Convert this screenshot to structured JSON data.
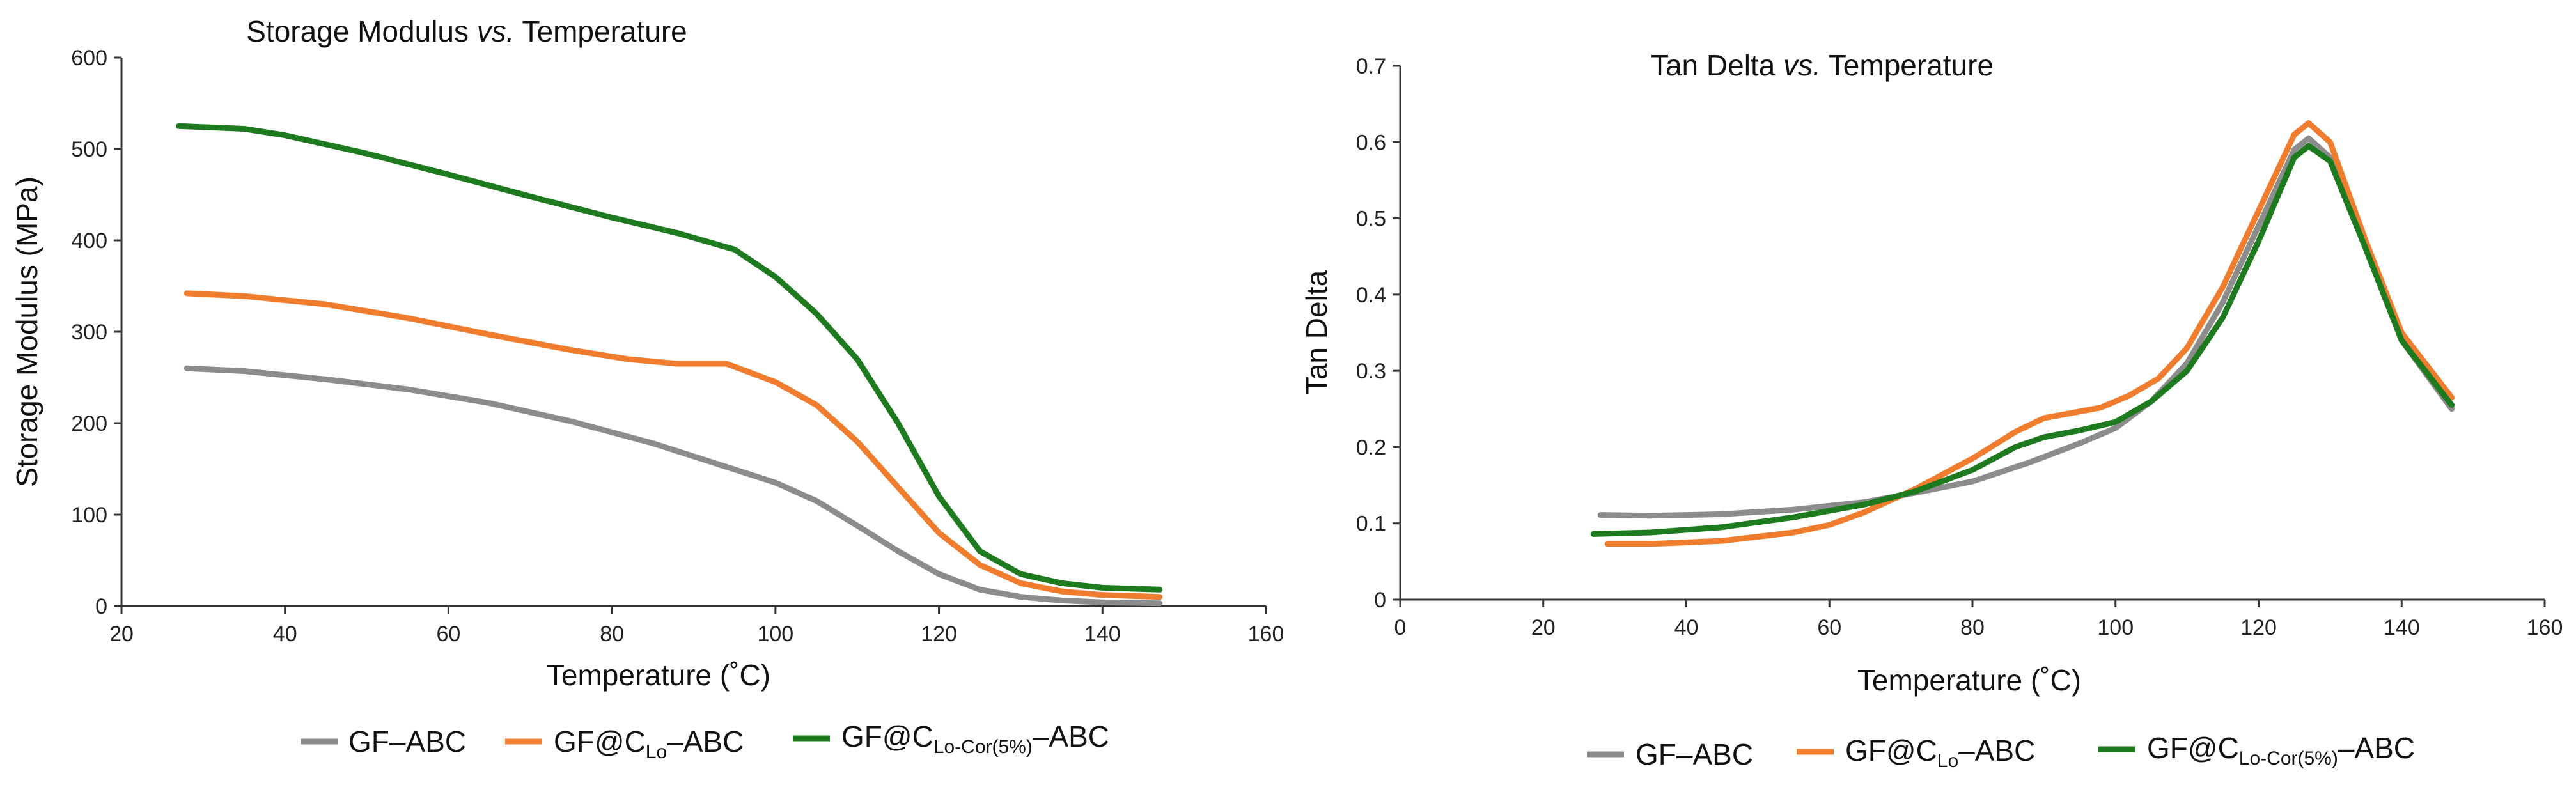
{
  "chart_data": [
    {
      "type": "line",
      "title": {
        "main": "Storage Modulus ",
        "italic": "vs.",
        "rest": " Temperature"
      },
      "xlabel": "Temperature (˚C)",
      "ylabel": "Storage Modulus (MPa)",
      "xlim": [
        20,
        160
      ],
      "ylim": [
        0,
        600
      ],
      "xticks": [
        "20",
        "40",
        "60",
        "80",
        "100",
        "120",
        "140",
        "160"
      ],
      "yticks": [
        "0",
        "100",
        "200",
        "300",
        "400",
        "500",
        "600"
      ],
      "series": [
        {
          "name": "GF–ABC",
          "label": {
            "base": "GF–ABC",
            "sub": "",
            "tail": ""
          },
          "color": "#8c8c8c",
          "x": [
            28,
            35,
            45,
            55,
            65,
            75,
            85,
            92,
            100,
            105,
            110,
            115,
            120,
            125,
            130,
            135,
            140,
            147
          ],
          "y": [
            260,
            257,
            248,
            237,
            222,
            202,
            178,
            158,
            135,
            115,
            88,
            60,
            35,
            18,
            10,
            6,
            4,
            3
          ]
        },
        {
          "name": "GF@CLo–ABC",
          "label": {
            "base": "GF@C",
            "sub": "Lo",
            "tail": "–ABC"
          },
          "color": "#f07d2e",
          "x": [
            28,
            35,
            45,
            55,
            65,
            75,
            82,
            88,
            94,
            100,
            105,
            110,
            115,
            120,
            125,
            130,
            135,
            140,
            147
          ],
          "y": [
            342,
            339,
            330,
            315,
            297,
            280,
            270,
            265,
            265,
            245,
            220,
            180,
            130,
            80,
            45,
            25,
            16,
            12,
            10
          ]
        },
        {
          "name": "GF@CLo-Cor(5%)–ABC",
          "label": {
            "base": "GF@C",
            "sub": "Lo-Cor(5%)",
            "tail": "–ABC"
          },
          "color": "#1e7a1e",
          "x": [
            27,
            35,
            40,
            50,
            60,
            70,
            80,
            88,
            95,
            100,
            105,
            110,
            115,
            120,
            125,
            130,
            135,
            140,
            147
          ],
          "y": [
            525,
            522,
            515,
            495,
            472,
            448,
            425,
            408,
            390,
            360,
            320,
            270,
            200,
            120,
            60,
            35,
            25,
            20,
            18
          ]
        }
      ],
      "legend": "bottom"
    },
    {
      "type": "line",
      "title": {
        "main": "Tan Delta ",
        "italic": "vs.",
        "rest": " Temperature"
      },
      "xlabel": "Temperature (˚C)",
      "ylabel": "Tan Delta",
      "xlim": [
        0,
        160
      ],
      "ylim": [
        0,
        0.7
      ],
      "xticks": [
        "0",
        "20",
        "40",
        "60",
        "80",
        "100",
        "120",
        "140",
        "160"
      ],
      "yticks": [
        "0",
        "0.1",
        "0.2",
        "0.3",
        "0.4",
        "0.5",
        "0.6",
        "0.7"
      ],
      "series": [
        {
          "name": "GF–ABC",
          "label": {
            "base": "GF–ABC",
            "sub": "",
            "tail": ""
          },
          "color": "#8c8c8c",
          "x": [
            28,
            35,
            45,
            55,
            65,
            72,
            80,
            88,
            95,
            100,
            105,
            110,
            115,
            120,
            125,
            127,
            130,
            135,
            140,
            147
          ],
          "y": [
            0.111,
            0.11,
            0.112,
            0.118,
            0.128,
            0.14,
            0.155,
            0.18,
            0.205,
            0.225,
            0.26,
            0.31,
            0.39,
            0.49,
            0.59,
            0.605,
            0.58,
            0.46,
            0.34,
            0.25
          ]
        },
        {
          "name": "GF@CLo–ABC",
          "label": {
            "base": "GF@C",
            "sub": "Lo",
            "tail": "–ABC"
          },
          "color": "#f07d2e",
          "x": [
            29,
            35,
            45,
            55,
            60,
            65,
            72,
            80,
            86,
            90,
            94,
            98,
            102,
            106,
            110,
            115,
            120,
            125,
            127,
            130,
            135,
            140,
            147
          ],
          "y": [
            0.073,
            0.073,
            0.077,
            0.088,
            0.098,
            0.115,
            0.145,
            0.185,
            0.22,
            0.238,
            0.245,
            0.252,
            0.268,
            0.29,
            0.33,
            0.41,
            0.51,
            0.61,
            0.625,
            0.6,
            0.47,
            0.35,
            0.265
          ]
        },
        {
          "name": "GF@CLo-Cor(5%)–ABC",
          "label": {
            "base": "GF@C",
            "sub": "Lo-Cor(5%)",
            "tail": "–ABC"
          },
          "color": "#1e7a1e",
          "x": [
            27,
            35,
            45,
            55,
            65,
            72,
            80,
            86,
            90,
            95,
            100,
            105,
            110,
            115,
            120,
            125,
            127,
            130,
            135,
            140,
            147
          ],
          "y": [
            0.086,
            0.088,
            0.095,
            0.108,
            0.125,
            0.142,
            0.17,
            0.2,
            0.213,
            0.222,
            0.233,
            0.26,
            0.3,
            0.37,
            0.47,
            0.58,
            0.595,
            0.575,
            0.46,
            0.34,
            0.255
          ]
        }
      ],
      "legend": "bottom"
    }
  ]
}
